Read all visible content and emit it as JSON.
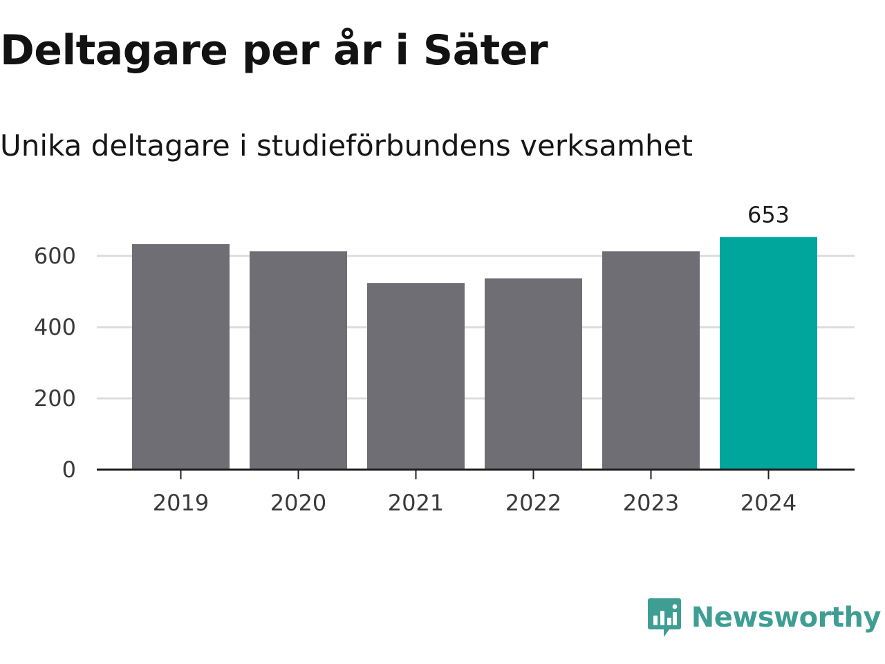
{
  "header": {
    "title": "Deltagare per år i Säter",
    "subtitle": "Unika deltagare i studieförbundens verksamhet"
  },
  "chart_data": {
    "type": "bar",
    "categories": [
      "2019",
      "2020",
      "2021",
      "2022",
      "2023",
      "2024"
    ],
    "values": [
      633,
      613,
      524,
      537,
      613,
      653
    ],
    "highlight_index": 5,
    "data_labels": {
      "5": "653"
    },
    "title": "Deltagare per år i Säter",
    "subtitle": "Unika deltagare i studieförbundens verksamhet",
    "ylim": [
      0,
      700
    ],
    "yticks": [
      0,
      200,
      400,
      600
    ],
    "grid": true,
    "colors": {
      "bar": "#6f6e74",
      "highlight": "#00a59b",
      "grid": "#dcdcdc",
      "axis": "#1f1f1f"
    }
  },
  "brand": {
    "name": "Newsworthy",
    "icon": "newsworthy-logo-icon",
    "color": "#3f9e94"
  }
}
